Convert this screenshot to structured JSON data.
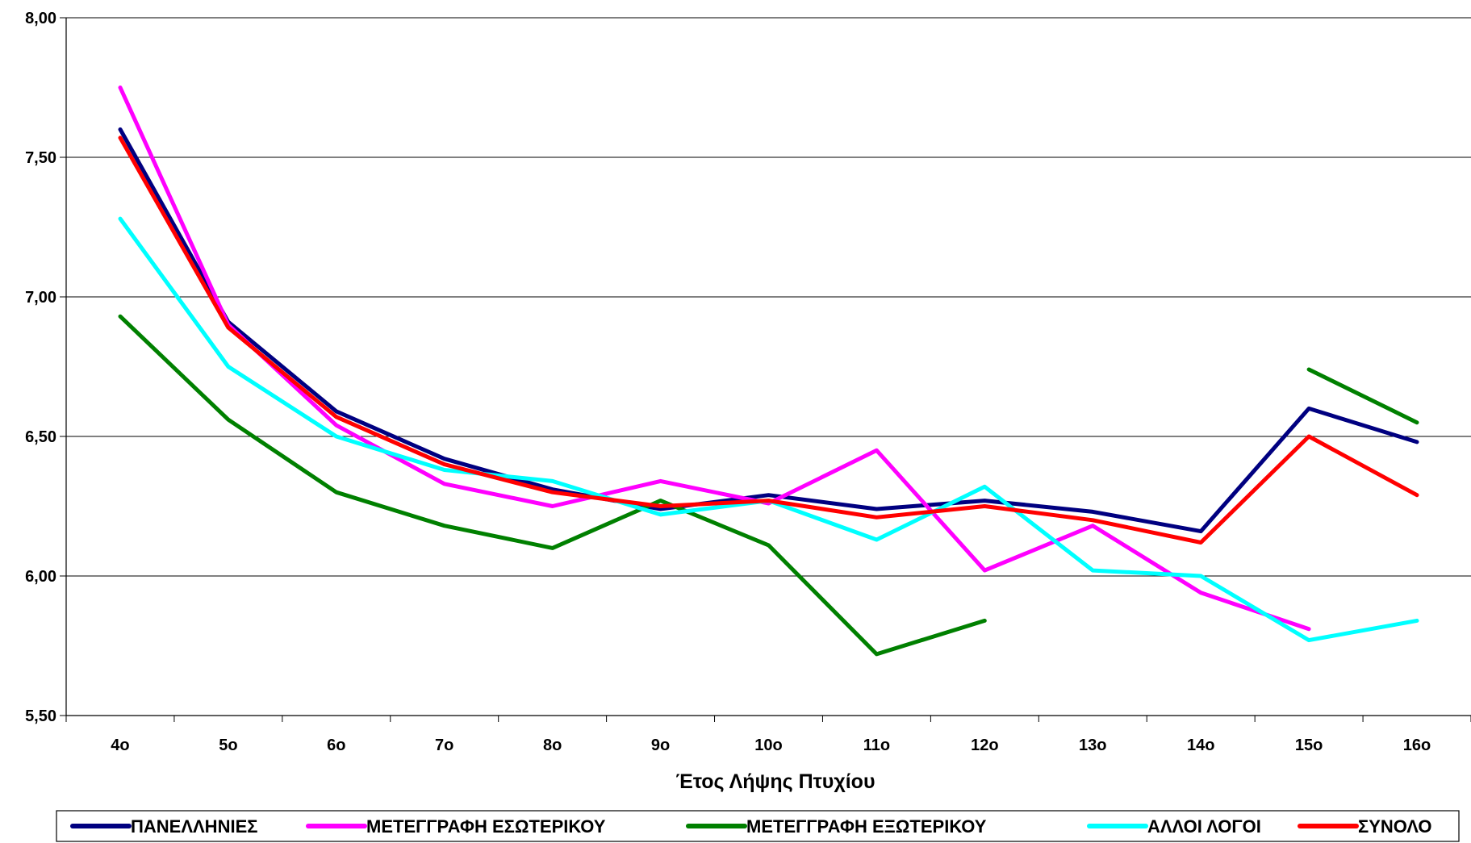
{
  "chart_data": {
    "type": "line",
    "title": "",
    "xlabel": "Έτος Λήψης Πτυχίου",
    "ylabel": "",
    "ylim": [
      5.5,
      8.0
    ],
    "yticks": [
      "5,50",
      "6,00",
      "6,50",
      "7,00",
      "7,50",
      "8,00"
    ],
    "categories": [
      "4ο",
      "5ο",
      "6ο",
      "7ο",
      "8ο",
      "9ο",
      "10ο",
      "11ο",
      "12ο",
      "13ο",
      "14ο",
      "15ο",
      "16ο"
    ],
    "grid": "horizontal",
    "legend_position": "bottom",
    "series": [
      {
        "name": "ΠΑΝΕΛΛΗΝΙΕΣ",
        "color": "#000080",
        "values": [
          7.6,
          6.91,
          6.59,
          6.42,
          6.31,
          6.24,
          6.29,
          6.24,
          6.27,
          6.23,
          6.16,
          6.6,
          6.48
        ]
      },
      {
        "name": "ΜΕΤΕΓΓΡΑΦΗ ΕΣΩΤΕΡΙΚΟΥ",
        "color": "#FF00FF",
        "values": [
          7.75,
          6.9,
          6.54,
          6.33,
          6.25,
          6.34,
          6.26,
          6.45,
          6.02,
          6.18,
          5.94,
          5.81,
          null
        ]
      },
      {
        "name": "ΜΕΤΕΓΓΡΑΦΗ ΕΞΩΤΕΡΙΚΟΥ",
        "color": "#008000",
        "values": [
          6.93,
          6.56,
          6.3,
          6.18,
          6.1,
          6.27,
          6.11,
          5.72,
          5.84,
          null,
          null,
          6.74,
          6.55
        ]
      },
      {
        "name": "ΑΛΛΟΙ ΛΟΓΟΙ",
        "color": "#00FFFF",
        "values": [
          7.28,
          6.75,
          6.5,
          6.38,
          6.34,
          6.22,
          6.27,
          6.13,
          6.32,
          6.02,
          6.0,
          5.77,
          5.84
        ]
      },
      {
        "name": "ΣΥΝΟΛΟ",
        "color": "#FF0000",
        "values": [
          7.57,
          6.89,
          6.57,
          6.4,
          6.3,
          6.25,
          6.27,
          6.21,
          6.25,
          6.2,
          6.12,
          6.5,
          6.29
        ]
      }
    ]
  }
}
